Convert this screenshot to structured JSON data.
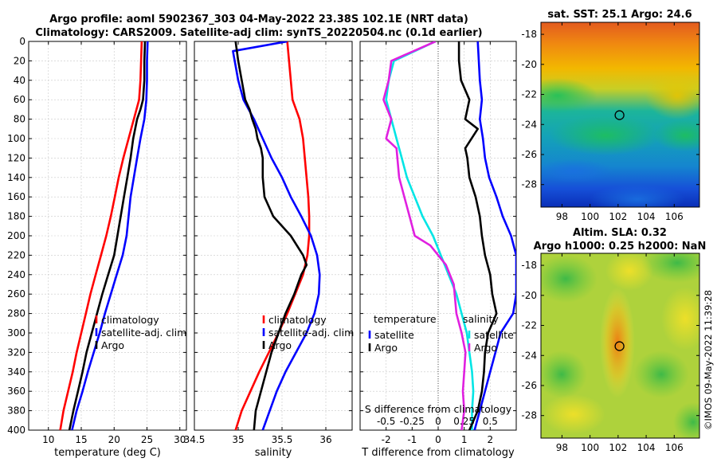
{
  "title": {
    "line1": "Argo profile: aoml 5902367_303 04-May-2022 23.38S 102.1E (NRT data)",
    "line2": "Climatology: CARS2009. Satellite-adj clim: synTS_20220504.nc (0.1d earlier)"
  },
  "watermark": "©IMOS 09-May-2022 11:39:28",
  "colors": {
    "climatology": "#ff0000",
    "satellite": "#0000ff",
    "argo": "#000000",
    "temp_diff_sat": "#00e5e5",
    "temp_diff_argo": "#e020e0",
    "zero_line": "#555555"
  },
  "chart_data": [
    {
      "type": "line",
      "id": "temperature",
      "xlabel": "temperature (deg C)",
      "ylabel": "",
      "xlim": [
        7,
        31
      ],
      "ylim": [
        400,
        0
      ],
      "xticks": [
        10,
        15,
        20,
        25,
        30
      ],
      "yticks": [
        0,
        20,
        40,
        60,
        80,
        100,
        120,
        140,
        160,
        180,
        200,
        220,
        240,
        260,
        280,
        300,
        320,
        340,
        360,
        380,
        400
      ],
      "grid": true,
      "legend": [
        "climatology",
        "satellite-adj. clim",
        "Argo"
      ],
      "legend_placement": "lower-right",
      "series": [
        {
          "name": "climatology",
          "color": "#ff0000",
          "points": [
            [
              24.2,
              0
            ],
            [
              24.1,
              20
            ],
            [
              24.0,
              40
            ],
            [
              23.8,
              60
            ],
            [
              23.0,
              80
            ],
            [
              22.2,
              100
            ],
            [
              21.4,
              120
            ],
            [
              20.7,
              140
            ],
            [
              20.1,
              160
            ],
            [
              19.5,
              180
            ],
            [
              18.8,
              200
            ],
            [
              18.0,
              220
            ],
            [
              17.2,
              240
            ],
            [
              16.4,
              260
            ],
            [
              15.7,
              280
            ],
            [
              15.0,
              300
            ],
            [
              14.3,
              320
            ],
            [
              13.7,
              340
            ],
            [
              13.0,
              360
            ],
            [
              12.3,
              380
            ],
            [
              11.8,
              400
            ]
          ]
        },
        {
          "name": "satellite-adj. clim",
          "color": "#0000ff",
          "points": [
            [
              25.1,
              0
            ],
            [
              25.0,
              20
            ],
            [
              25.0,
              40
            ],
            [
              24.9,
              60
            ],
            [
              24.6,
              80
            ],
            [
              24.0,
              100
            ],
            [
              23.5,
              120
            ],
            [
              23.0,
              140
            ],
            [
              22.5,
              160
            ],
            [
              22.2,
              180
            ],
            [
              21.9,
              200
            ],
            [
              21.3,
              220
            ],
            [
              20.4,
              240
            ],
            [
              19.5,
              260
            ],
            [
              18.6,
              280
            ],
            [
              17.8,
              300
            ],
            [
              16.9,
              320
            ],
            [
              16.0,
              340
            ],
            [
              15.2,
              360
            ],
            [
              14.3,
              380
            ],
            [
              13.6,
              400
            ]
          ]
        },
        {
          "name": "Argo",
          "color": "#000000",
          "points": [
            [
              24.7,
              0
            ],
            [
              24.6,
              20
            ],
            [
              24.6,
              40
            ],
            [
              24.4,
              60
            ],
            [
              24.0,
              70
            ],
            [
              23.5,
              80
            ],
            [
              22.9,
              100
            ],
            [
              22.5,
              120
            ],
            [
              22.0,
              140
            ],
            [
              21.5,
              160
            ],
            [
              21.0,
              180
            ],
            [
              20.5,
              200
            ],
            [
              20.0,
              220
            ],
            [
              19.1,
              240
            ],
            [
              18.2,
              260
            ],
            [
              17.4,
              280
            ],
            [
              16.6,
              300
            ],
            [
              15.8,
              320
            ],
            [
              15.2,
              340
            ],
            [
              14.5,
              360
            ],
            [
              13.8,
              380
            ],
            [
              13.2,
              400
            ]
          ]
        }
      ]
    },
    {
      "type": "line",
      "id": "salinity",
      "xlabel": "salinity",
      "ylabel": "",
      "xlim": [
        34.5,
        36.3
      ],
      "ylim": [
        400,
        0
      ],
      "xticks": [
        34.5,
        35,
        35.5,
        36
      ],
      "xticklabels": [
        "34.5",
        "35",
        "35.5",
        "36"
      ],
      "grid": true,
      "legend": [
        "climatology",
        "satellite-adj. clim",
        "Argo"
      ],
      "legend_placement": "lower-right",
      "series": [
        {
          "name": "climatology",
          "color": "#ff0000",
          "points": [
            [
              35.56,
              0
            ],
            [
              35.58,
              20
            ],
            [
              35.6,
              40
            ],
            [
              35.62,
              60
            ],
            [
              35.7,
              80
            ],
            [
              35.74,
              100
            ],
            [
              35.76,
              120
            ],
            [
              35.78,
              140
            ],
            [
              35.8,
              160
            ],
            [
              35.81,
              180
            ],
            [
              35.81,
              200
            ],
            [
              35.79,
              220
            ],
            [
              35.74,
              240
            ],
            [
              35.65,
              260
            ],
            [
              35.56,
              280
            ],
            [
              35.46,
              300
            ],
            [
              35.35,
              320
            ],
            [
              35.24,
              340
            ],
            [
              35.14,
              360
            ],
            [
              35.04,
              380
            ],
            [
              34.97,
              400
            ]
          ]
        },
        {
          "name": "satellite-adj. clim",
          "color": "#0000ff",
          "points": [
            [
              35.56,
              0
            ],
            [
              34.94,
              10
            ],
            [
              34.96,
              20
            ],
            [
              35.0,
              40
            ],
            [
              35.06,
              60
            ],
            [
              35.18,
              80
            ],
            [
              35.28,
              100
            ],
            [
              35.38,
              120
            ],
            [
              35.5,
              140
            ],
            [
              35.6,
              160
            ],
            [
              35.72,
              180
            ],
            [
              35.83,
              200
            ],
            [
              35.9,
              220
            ],
            [
              35.93,
              240
            ],
            [
              35.92,
              260
            ],
            [
              35.87,
              280
            ],
            [
              35.78,
              300
            ],
            [
              35.66,
              320
            ],
            [
              35.54,
              340
            ],
            [
              35.44,
              360
            ],
            [
              35.36,
              380
            ],
            [
              35.28,
              400
            ]
          ]
        },
        {
          "name": "Argo",
          "color": "#000000",
          "points": [
            [
              34.97,
              0
            ],
            [
              35.0,
              20
            ],
            [
              35.04,
              40
            ],
            [
              35.08,
              60
            ],
            [
              35.13,
              70
            ],
            [
              35.16,
              80
            ],
            [
              35.2,
              90
            ],
            [
              35.22,
              100
            ],
            [
              35.26,
              110
            ],
            [
              35.28,
              120
            ],
            [
              35.28,
              140
            ],
            [
              35.3,
              160
            ],
            [
              35.4,
              180
            ],
            [
              35.6,
              200
            ],
            [
              35.74,
              220
            ],
            [
              35.78,
              230
            ],
            [
              35.72,
              240
            ],
            [
              35.64,
              260
            ],
            [
              35.54,
              280
            ],
            [
              35.46,
              300
            ],
            [
              35.38,
              320
            ],
            [
              35.32,
              340
            ],
            [
              35.26,
              360
            ],
            [
              35.2,
              380
            ],
            [
              35.18,
              400
            ]
          ]
        }
      ]
    },
    {
      "type": "line",
      "id": "difference",
      "xlabel": "T difference from climatology",
      "x2label": "S difference from climatology",
      "xlim": [
        -3,
        3
      ],
      "ylim": [
        400,
        0
      ],
      "xticks": [
        -2,
        -1,
        0,
        1,
        2
      ],
      "xticklabels": [
        "-2",
        "-1",
        "0",
        "1",
        "2"
      ],
      "x2ticks": [
        -0.5,
        -0.25,
        0,
        0.25,
        0.5
      ],
      "x2ticklabels": [
        "-0.5",
        "-0.25",
        "0",
        "0.25",
        "0.5"
      ],
      "x2lim": [
        -0.75,
        0.75
      ],
      "grid": true,
      "legend_temperature": {
        "title": "temperature",
        "entries": [
          "satellite",
          "Argo"
        ]
      },
      "legend_salinity": {
        "title": "salinity",
        "entries": [
          "satellite",
          "Argo"
        ]
      },
      "series": [
        {
          "name": "T satellite",
          "color": "#00e5e5",
          "axis": "T",
          "points": [
            [
              -0.1,
              0
            ],
            [
              -1.7,
              20
            ],
            [
              -1.9,
              40
            ],
            [
              -2.0,
              60
            ],
            [
              -1.8,
              80
            ],
            [
              -1.6,
              100
            ],
            [
              -1.4,
              120
            ],
            [
              -1.2,
              140
            ],
            [
              -0.9,
              160
            ],
            [
              -0.6,
              180
            ],
            [
              -0.2,
              200
            ],
            [
              0.1,
              220
            ],
            [
              0.4,
              240
            ],
            [
              0.7,
              260
            ],
            [
              0.9,
              280
            ],
            [
              1.1,
              300
            ],
            [
              1.2,
              320
            ],
            [
              1.3,
              340
            ],
            [
              1.35,
              360
            ],
            [
              1.3,
              380
            ],
            [
              1.3,
              400
            ]
          ]
        },
        {
          "name": "T Argo",
          "color": "#e020e0",
          "axis": "T",
          "points": [
            [
              -0.1,
              0
            ],
            [
              -1.8,
              20
            ],
            [
              -1.9,
              40
            ],
            [
              -2.1,
              60
            ],
            [
              -1.8,
              80
            ],
            [
              -2.0,
              100
            ],
            [
              -1.6,
              110
            ],
            [
              -1.5,
              140
            ],
            [
              -1.3,
              160
            ],
            [
              -1.1,
              180
            ],
            [
              -0.9,
              200
            ],
            [
              -0.3,
              210
            ],
            [
              0.3,
              230
            ],
            [
              0.6,
              250
            ],
            [
              0.7,
              280
            ],
            [
              0.9,
              300
            ],
            [
              1.05,
              320
            ],
            [
              1.0,
              340
            ],
            [
              0.95,
              360
            ],
            [
              1.0,
              380
            ],
            [
              0.9,
              400
            ]
          ]
        },
        {
          "name": "S satellite",
          "color": "#0000ff",
          "axis": "S",
          "points": [
            [
              0.38,
              0
            ],
            [
              0.39,
              20
            ],
            [
              0.4,
              40
            ],
            [
              0.42,
              60
            ],
            [
              0.4,
              80
            ],
            [
              0.43,
              100
            ],
            [
              0.45,
              120
            ],
            [
              0.49,
              140
            ],
            [
              0.56,
              160
            ],
            [
              0.62,
              180
            ],
            [
              0.7,
              200
            ],
            [
              0.75,
              220
            ],
            [
              0.75,
              240
            ],
            [
              0.75,
              260
            ],
            [
              0.72,
              280
            ],
            [
              0.6,
              300
            ],
            [
              0.55,
              320
            ],
            [
              0.5,
              340
            ],
            [
              0.45,
              360
            ],
            [
              0.4,
              380
            ],
            [
              0.35,
              400
            ]
          ]
        },
        {
          "name": "S Argo",
          "color": "#000000",
          "axis": "S",
          "points": [
            [
              0.2,
              0
            ],
            [
              0.2,
              20
            ],
            [
              0.22,
              40
            ],
            [
              0.3,
              60
            ],
            [
              0.26,
              80
            ],
            [
              0.38,
              90
            ],
            [
              0.26,
              110
            ],
            [
              0.28,
              120
            ],
            [
              0.3,
              140
            ],
            [
              0.36,
              160
            ],
            [
              0.4,
              180
            ],
            [
              0.42,
              200
            ],
            [
              0.45,
              220
            ],
            [
              0.5,
              240
            ],
            [
              0.52,
              260
            ],
            [
              0.56,
              280
            ],
            [
              0.48,
              300
            ],
            [
              0.45,
              320
            ],
            [
              0.44,
              340
            ],
            [
              0.42,
              360
            ],
            [
              0.38,
              380
            ],
            [
              0.3,
              400
            ]
          ]
        }
      ]
    },
    {
      "type": "heatmap",
      "id": "sst_map",
      "title": "sat. SST: 25.1 Argo: 24.6",
      "xlim": [
        96.5,
        107.8
      ],
      "ylim": [
        -29.5,
        -17.2
      ],
      "xticks": [
        98,
        100,
        102,
        104,
        106
      ],
      "yticks": [
        -18,
        -20,
        -22,
        -24,
        -26,
        -28
      ],
      "marker": {
        "lon": 102.1,
        "lat": -23.38
      }
    },
    {
      "type": "heatmap",
      "id": "sla_map",
      "title_line1": "Altim. SLA: 0.32",
      "title_line2": "Argo h1000: 0.25 h2000: NaN",
      "xlim": [
        96.5,
        107.8
      ],
      "ylim": [
        -29.5,
        -17.2
      ],
      "xticks": [
        98,
        100,
        102,
        104,
        106
      ],
      "yticks": [
        -18,
        -20,
        -22,
        -24,
        -26,
        -28
      ],
      "marker": {
        "lon": 102.1,
        "lat": -23.38
      }
    }
  ]
}
